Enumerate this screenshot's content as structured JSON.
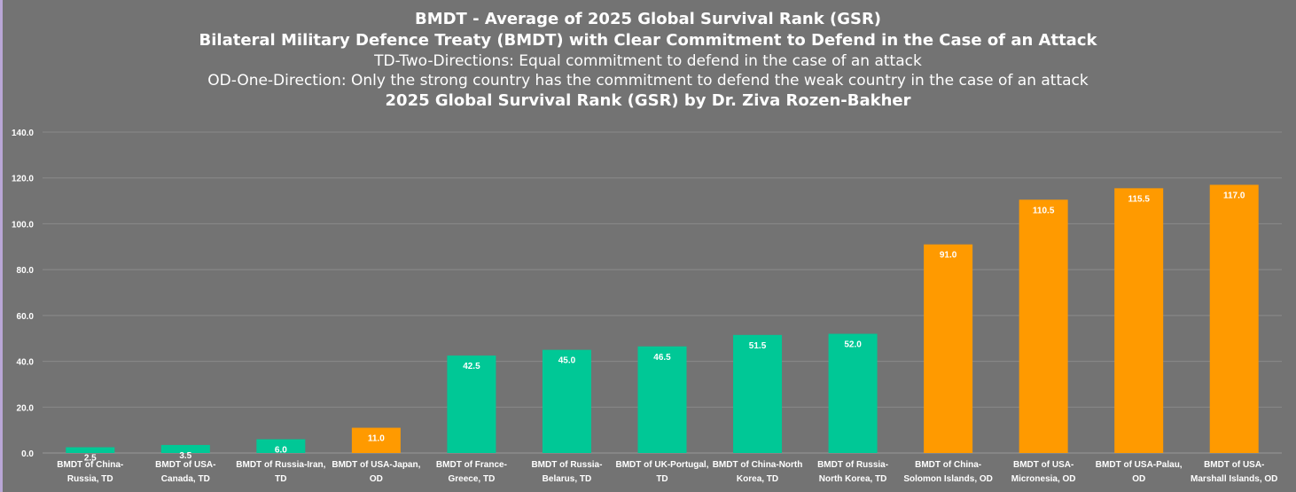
{
  "titles": {
    "line1": "BMDT - Average of 2025 Global Survival Rank (GSR)",
    "line2": "Bilateral Military Defence Treaty (BMDT) with Clear Commitment to Defend in the Case of an Attack",
    "line3": "TD-Two-Directions: Equal commitment to defend in the case of an attack",
    "line4": "OD-One-Direction: Only the strong country has the commitment to defend the weak country in the case of an attack",
    "line5": "2025 Global Survival Rank (GSR) by Dr. Ziva Rozen-Bakher"
  },
  "chart_data": {
    "type": "bar",
    "categories": [
      "BMDT of China-Russia, TD",
      "BMDT of USA-Canada, TD",
      "BMDT of Russia-Iran, TD",
      "BMDT of USA-Japan, OD",
      "BMDT of France-Greece, TD",
      "BMDT of Russia-Belarus, TD",
      "BMDT of UK-Portugal, TD",
      "BMDT of China-North Korea, TD",
      "BMDT of Russia-North Korea, TD",
      "BMDT of China-Solomon Islands, OD",
      "BMDT of USA-Micronesia, OD",
      "BMDT of USA-Palau, OD",
      "BMDT of USA-Marshall Islands, OD"
    ],
    "category_lines": [
      [
        "BMDT of China-",
        "Russia, TD"
      ],
      [
        "BMDT of USA-",
        "Canada, TD"
      ],
      [
        "BMDT of Russia-Iran,",
        "TD"
      ],
      [
        "BMDT of USA-Japan,",
        "OD"
      ],
      [
        "BMDT of France-",
        "Greece, TD"
      ],
      [
        "BMDT of Russia-",
        "Belarus, TD"
      ],
      [
        "BMDT of UK-Portugal,",
        "TD"
      ],
      [
        "BMDT of China-North",
        "Korea, TD"
      ],
      [
        "BMDT of Russia-",
        "North Korea, TD"
      ],
      [
        "BMDT of China-",
        "Solomon Islands, OD"
      ],
      [
        "BMDT of USA-",
        "Micronesia, OD"
      ],
      [
        "BMDT of USA-Palau,",
        "OD"
      ],
      [
        "BMDT of USA-",
        "Marshall Islands, OD"
      ]
    ],
    "values": [
      2.5,
      3.5,
      6.0,
      11.0,
      42.5,
      45.0,
      46.5,
      51.5,
      52.0,
      91.0,
      110.5,
      115.5,
      117.0
    ],
    "value_labels": [
      "2.5",
      "3.5",
      "6.0",
      "11.0",
      "42.5",
      "45.0",
      "46.5",
      "51.5",
      "52.0",
      "91.0",
      "110.5",
      "115.5",
      "117.0"
    ],
    "bar_colors": [
      "#00c896",
      "#00c896",
      "#00c896",
      "#ff9a00",
      "#00c896",
      "#00c896",
      "#00c896",
      "#00c896",
      "#00c896",
      "#ff9a00",
      "#ff9a00",
      "#ff9a00",
      "#ff9a00"
    ],
    "ylim": [
      0,
      140
    ],
    "yticks": [
      0,
      20,
      40,
      60,
      80,
      100,
      120,
      140
    ],
    "ytick_labels": [
      "0.0",
      "20.0",
      "40.0",
      "60.0",
      "80.0",
      "100.0",
      "120.0",
      "140.0"
    ],
    "grid": true,
    "colors": {
      "td": "#00c896",
      "od": "#ff9a00",
      "background": "#737373",
      "grid": "#8a8a8a",
      "text": "#ffffff"
    }
  }
}
